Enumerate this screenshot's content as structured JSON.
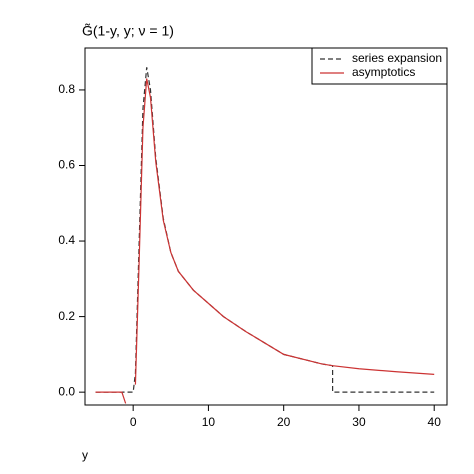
{
  "chart_data": {
    "type": "line",
    "title": "G̃(1-y, y; ν = 1)",
    "x_label": "y",
    "x": [
      -5,
      -2,
      -1.5,
      -1,
      -0.7,
      0,
      0.3,
      0.8,
      1.3,
      1.8,
      2.3,
      3,
      4,
      5,
      6,
      8,
      10,
      12,
      15,
      20,
      25,
      26.5,
      26.5,
      30,
      35,
      40
    ],
    "series": [
      {
        "name": "series expansion",
        "color": "#333333",
        "dash": true,
        "values": [
          0,
          0,
          0,
          0,
          0,
          0,
          0.05,
          0.4,
          0.75,
          0.86,
          0.8,
          0.62,
          0.46,
          0.37,
          0.32,
          0.27,
          0.235,
          0.2,
          0.16,
          0.1,
          0.075,
          0.07,
          0,
          0,
          0,
          0
        ]
      },
      {
        "name": "asymptotics",
        "color": "#cc3333",
        "dash": false,
        "values": [
          0,
          0,
          0,
          -0.03,
          null,
          null,
          0.02,
          0.35,
          0.7,
          0.83,
          0.78,
          0.61,
          0.455,
          0.37,
          0.32,
          0.27,
          0.235,
          0.2,
          0.16,
          0.1,
          0.075,
          0.07,
          0.07,
          0.062,
          0.054,
          0.047
        ]
      }
    ],
    "xlim": [
      -6.4,
      41.7
    ],
    "xticks": [
      0,
      10,
      20,
      30,
      40
    ],
    "ylim": [
      -0.034,
      0.911
    ],
    "yticks": [
      {
        "value": 0,
        "label": "0.0"
      },
      0.2,
      0.4,
      0.6,
      0.8
    ],
    "legend": "top-right"
  }
}
